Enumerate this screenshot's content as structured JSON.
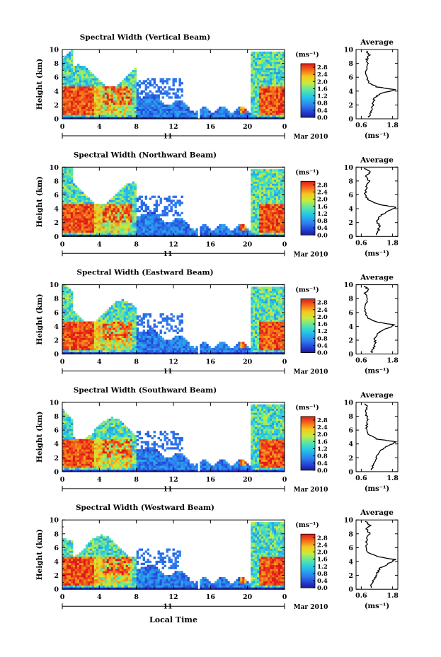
{
  "figure": {
    "x_axis_title": "Local Time",
    "date_label": "Mar 2010",
    "date_tick_label": "11"
  },
  "chart_data": [
    {
      "type": "heatmap",
      "title": "Spectral Width (Vertical Beam)",
      "ylabel": "Height (km)",
      "xlabel": "Local Time",
      "x_ticks": [
        "0",
        "4",
        "8",
        "12",
        "16",
        "20",
        "0"
      ],
      "xlim": [
        0,
        24
      ],
      "y_ticks": [
        "0",
        "2",
        "4",
        "6",
        "8",
        "10"
      ],
      "ylim": [
        0,
        10
      ],
      "colorbar": {
        "unit": "(ms⁻¹)",
        "ticks": [
          "0.0",
          "0.4",
          "0.8",
          "1.2",
          "1.6",
          "2.0",
          "2.4",
          "2.8"
        ],
        "range": [
          0,
          3.0
        ]
      },
      "average_profile": {
        "title": "Average",
        "xlabel": "(ms⁻¹)",
        "x_ticks": [
          "0.6",
          "1.8"
        ],
        "xlim": [
          0.4,
          2.0
        ],
        "y_ticks": [
          "0",
          "2",
          "4",
          "6",
          "8",
          "10"
        ],
        "points": [
          [
            0.9,
            0.2
          ],
          [
            0.95,
            0.8
          ],
          [
            1.0,
            1.5
          ],
          [
            1.05,
            2.2
          ],
          [
            1.1,
            3.0
          ],
          [
            1.3,
            3.6
          ],
          [
            1.9,
            4.2
          ],
          [
            1.2,
            4.6
          ],
          [
            0.9,
            5.2
          ],
          [
            0.8,
            6.0
          ],
          [
            0.78,
            7.0
          ],
          [
            0.85,
            8.0
          ],
          [
            0.8,
            8.6
          ],
          [
            0.9,
            9.2
          ],
          [
            0.8,
            9.8
          ]
        ]
      }
    },
    {
      "type": "heatmap",
      "title": "Spectral Width (Northward Beam)",
      "ylabel": "Height (km)",
      "xlabel": "Local Time",
      "x_ticks": [
        "0",
        "4",
        "8",
        "12",
        "16",
        "20",
        "0"
      ],
      "xlim": [
        0,
        24
      ],
      "y_ticks": [
        "0",
        "2",
        "4",
        "6",
        "8",
        "10"
      ],
      "ylim": [
        0,
        10
      ],
      "colorbar": {
        "unit": "(ms⁻¹)",
        "ticks": [
          "0.0",
          "0.4",
          "0.8",
          "1.2",
          "1.6",
          "2.0",
          "2.4",
          "2.8"
        ],
        "range": [
          0,
          3.0
        ]
      },
      "average_profile": {
        "title": "Average",
        "xlabel": "(ms⁻¹)",
        "x_ticks": [
          "0.6",
          "1.8"
        ],
        "xlim": [
          0.4,
          2.0
        ],
        "y_ticks": [
          "0",
          "2",
          "4",
          "6",
          "8",
          "10"
        ],
        "points": [
          [
            1.2,
            0.2
          ],
          [
            1.25,
            0.8
          ],
          [
            1.3,
            1.5
          ],
          [
            1.2,
            2.2
          ],
          [
            1.35,
            3.0
          ],
          [
            1.6,
            3.6
          ],
          [
            1.95,
            4.2
          ],
          [
            1.3,
            4.6
          ],
          [
            0.85,
            5.3
          ],
          [
            0.75,
            6.2
          ],
          [
            0.8,
            7.2
          ],
          [
            0.9,
            8.0
          ],
          [
            0.75,
            8.7
          ],
          [
            0.95,
            9.3
          ],
          [
            0.7,
            9.8
          ]
        ]
      }
    },
    {
      "type": "heatmap",
      "title": "Spectral Width (Eastward Beam)",
      "ylabel": "Height (km)",
      "xlabel": "Local Time",
      "x_ticks": [
        "0",
        "4",
        "8",
        "12",
        "16",
        "20",
        "0"
      ],
      "xlim": [
        0,
        24
      ],
      "y_ticks": [
        "0",
        "2",
        "4",
        "6",
        "8",
        "10"
      ],
      "ylim": [
        0,
        10
      ],
      "colorbar": {
        "unit": "(ms⁻¹)",
        "ticks": [
          "0.0",
          "0.4",
          "0.8",
          "1.2",
          "1.6",
          "2.0",
          "2.4",
          "2.8"
        ],
        "range": [
          0,
          3.0
        ]
      },
      "average_profile": {
        "title": "Average",
        "xlabel": "(ms⁻¹)",
        "x_ticks": [
          "0.6",
          "1.8"
        ],
        "xlim": [
          0.4,
          2.0
        ],
        "y_ticks": [
          "0",
          "2",
          "4",
          "6",
          "8",
          "10"
        ],
        "points": [
          [
            1.0,
            0.2
          ],
          [
            1.05,
            0.8
          ],
          [
            1.15,
            1.5
          ],
          [
            1.1,
            2.2
          ],
          [
            1.25,
            3.0
          ],
          [
            1.5,
            3.6
          ],
          [
            1.9,
            4.2
          ],
          [
            1.2,
            4.6
          ],
          [
            0.8,
            5.3
          ],
          [
            0.75,
            6.2
          ],
          [
            0.78,
            7.2
          ],
          [
            0.85,
            8.0
          ],
          [
            0.72,
            8.8
          ],
          [
            0.9,
            9.3
          ],
          [
            0.7,
            9.8
          ]
        ]
      }
    },
    {
      "type": "heatmap",
      "title": "Spectral Width (Southward Beam)",
      "ylabel": "Height (km)",
      "xlabel": "Local Time",
      "x_ticks": [
        "0",
        "4",
        "8",
        "12",
        "16",
        "20",
        "0"
      ],
      "xlim": [
        0,
        24
      ],
      "y_ticks": [
        "0",
        "2",
        "4",
        "6",
        "8",
        "10"
      ],
      "ylim": [
        0,
        10
      ],
      "colorbar": {
        "unit": "(ms⁻¹)",
        "ticks": [
          "0.0",
          "0.4",
          "0.8",
          "1.2",
          "1.6",
          "2.0",
          "2.4",
          "2.8"
        ],
        "range": [
          0,
          3.0
        ]
      },
      "average_profile": {
        "title": "Average",
        "xlabel": "(ms⁻¹)",
        "x_ticks": [
          "0.6",
          "1.8"
        ],
        "xlim": [
          0.4,
          2.0
        ],
        "y_ticks": [
          "0",
          "2",
          "4",
          "6",
          "8",
          "10"
        ],
        "points": [
          [
            1.0,
            0.2
          ],
          [
            1.05,
            0.8
          ],
          [
            1.15,
            1.5
          ],
          [
            1.2,
            2.2
          ],
          [
            1.35,
            3.0
          ],
          [
            1.55,
            3.6
          ],
          [
            1.95,
            4.3
          ],
          [
            1.2,
            4.7
          ],
          [
            0.85,
            5.4
          ],
          [
            0.8,
            6.3
          ],
          [
            0.85,
            7.2
          ],
          [
            0.8,
            8.0
          ],
          [
            0.75,
            8.7
          ],
          [
            0.85,
            9.3
          ],
          [
            0.72,
            9.8
          ]
        ]
      }
    },
    {
      "type": "heatmap",
      "title": "Spectral Width (Westward Beam)",
      "ylabel": "Height (km)",
      "xlabel": "Local Time",
      "x_ticks": [
        "0",
        "4",
        "8",
        "12",
        "16",
        "20",
        "0"
      ],
      "xlim": [
        0,
        24
      ],
      "y_ticks": [
        "0",
        "2",
        "4",
        "6",
        "8",
        "10"
      ],
      "ylim": [
        0,
        10
      ],
      "colorbar": {
        "unit": "(ms⁻¹)",
        "ticks": [
          "0.0",
          "0.4",
          "0.8",
          "1.2",
          "1.6",
          "2.0",
          "2.4",
          "2.8"
        ],
        "range": [
          0,
          3.0
        ]
      },
      "average_profile": {
        "title": "Average",
        "xlabel": "(ms⁻¹)",
        "x_ticks": [
          "0.6",
          "1.8"
        ],
        "xlim": [
          0.4,
          2.0
        ],
        "y_ticks": [
          "0",
          "2",
          "4",
          "6",
          "8",
          "10"
        ],
        "points": [
          [
            1.0,
            0.2
          ],
          [
            1.0,
            0.8
          ],
          [
            1.1,
            1.5
          ],
          [
            1.2,
            2.2
          ],
          [
            1.3,
            3.0
          ],
          [
            1.6,
            3.6
          ],
          [
            1.9,
            4.3
          ],
          [
            1.2,
            4.7
          ],
          [
            0.85,
            5.4
          ],
          [
            0.8,
            6.3
          ],
          [
            0.8,
            7.2
          ],
          [
            0.92,
            8.0
          ],
          [
            0.8,
            8.7
          ],
          [
            0.95,
            9.2
          ],
          [
            0.75,
            9.8
          ]
        ]
      }
    }
  ]
}
